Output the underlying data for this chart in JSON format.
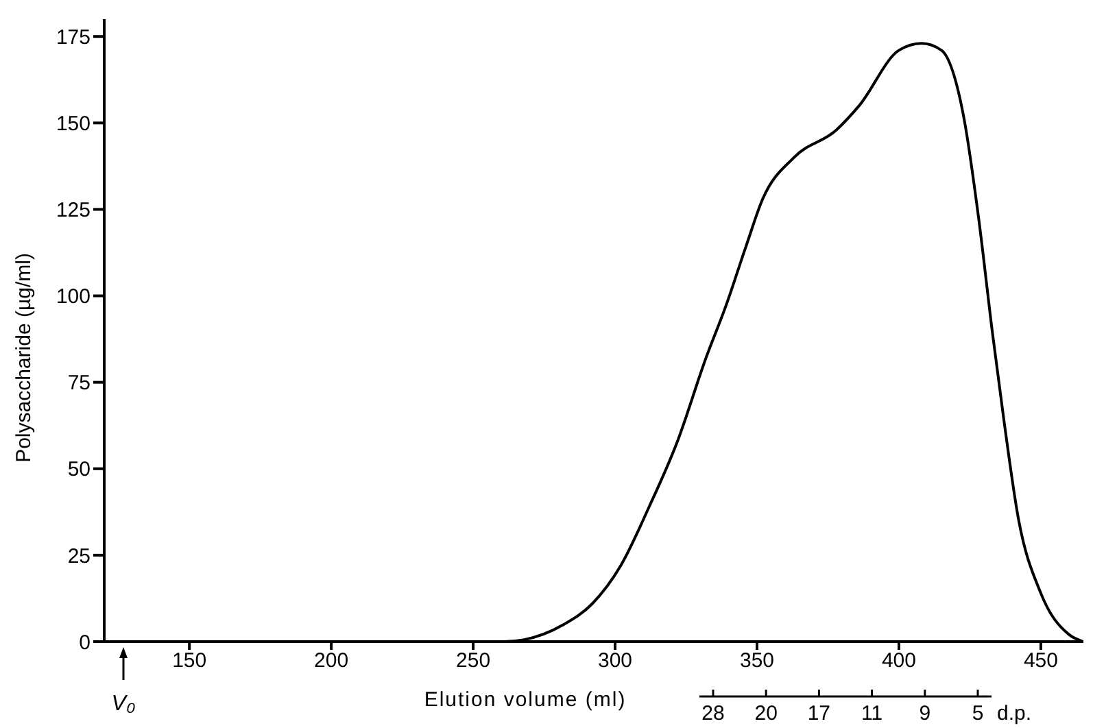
{
  "chart_data": {
    "type": "line",
    "xlabel": "Elution volume (ml)",
    "ylabel": "Polysaccharide (µg/ml)",
    "x": [
      250,
      261,
      282,
      292,
      302,
      312,
      322,
      332,
      339,
      346,
      352,
      363,
      378,
      386,
      400,
      408,
      415,
      423,
      428,
      433,
      437,
      442,
      450,
      460,
      465
    ],
    "series": [
      {
        "color": "#000000",
        "values": [
          0,
          0,
          5,
          11,
          22,
          39,
          58,
          82,
          97,
          114,
          128,
          140,
          148,
          155,
          171,
          173,
          171,
          151,
          123,
          89,
          64,
          36,
          14,
          2,
          0
        ]
      }
    ],
    "xlim": [
      120,
      465
    ],
    "xticks": [
      150,
      200,
      250,
      300,
      350,
      400,
      450
    ],
    "ylim": [
      0,
      180
    ],
    "yticks": [
      0,
      25,
      50,
      75,
      100,
      125,
      150,
      175
    ],
    "annotations": [
      "V₀",
      "28",
      "20",
      "17",
      "11",
      "9",
      "5",
      "d.p."
    ],
    "marker": "none",
    "line_style": "solid"
  }
}
